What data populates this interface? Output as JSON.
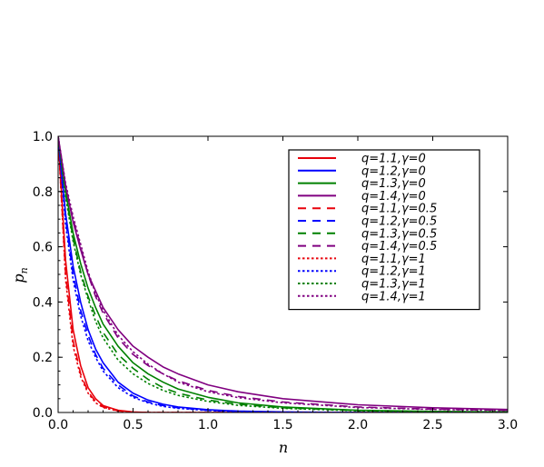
{
  "chart_data": {
    "type": "line",
    "xlabel": "n",
    "ylabel": "p_n",
    "xlim": [
      0,
      3.0
    ],
    "ylim": [
      0,
      1.0
    ],
    "xticks": [
      "0.0",
      "0.5",
      "1.0",
      "1.5",
      "2.0",
      "2.5",
      "3.0"
    ],
    "yticks": [
      "0.0",
      "0.2",
      "0.4",
      "0.6",
      "0.8",
      "1.0"
    ],
    "legend_position": "top-right",
    "grid": false,
    "x": [
      0,
      0.05,
      0.1,
      0.15,
      0.2,
      0.25,
      0.3,
      0.4,
      0.5,
      0.6,
      0.7,
      0.8,
      1.0,
      1.2,
      1.5,
      2.0,
      2.5,
      3.0
    ],
    "series": [
      {
        "name": "q=1.1,γ=0",
        "color": "#e8000b",
        "dash": "solid",
        "values": [
          1.0,
          0.55,
          0.3,
          0.17,
          0.09,
          0.05,
          0.025,
          0.008,
          0.002,
          0.0,
          0.0,
          0.0,
          0.0,
          0.0,
          0.0,
          0.0,
          0.0,
          0.0
        ]
      },
      {
        "name": "q=1.2,γ=0",
        "color": "#0000ff",
        "dash": "solid",
        "values": [
          1.0,
          0.72,
          0.53,
          0.4,
          0.3,
          0.23,
          0.18,
          0.11,
          0.07,
          0.045,
          0.03,
          0.02,
          0.01,
          0.005,
          0.002,
          0.0,
          0.0,
          0.0
        ]
      },
      {
        "name": "q=1.3,γ=0",
        "color": "#008000",
        "dash": "solid",
        "values": [
          1.0,
          0.8,
          0.65,
          0.54,
          0.45,
          0.38,
          0.32,
          0.24,
          0.18,
          0.14,
          0.11,
          0.085,
          0.055,
          0.035,
          0.02,
          0.008,
          0.004,
          0.002
        ]
      },
      {
        "name": "q=1.4,γ=0",
        "color": "#800080",
        "dash": "solid",
        "values": [
          1.0,
          0.82,
          0.69,
          0.59,
          0.5,
          0.44,
          0.38,
          0.3,
          0.24,
          0.2,
          0.165,
          0.14,
          0.1,
          0.075,
          0.05,
          0.028,
          0.017,
          0.011
        ]
      },
      {
        "name": "q=1.1,γ=0.5",
        "color": "#e8000b",
        "dash": "long",
        "values": [
          1.0,
          0.5,
          0.26,
          0.14,
          0.075,
          0.04,
          0.02,
          0.006,
          0.001,
          0.0,
          0.0,
          0.0,
          0.0,
          0.0,
          0.0,
          0.0,
          0.0,
          0.0
        ]
      },
      {
        "name": "q=1.2,γ=0.5",
        "color": "#0000ff",
        "dash": "long",
        "values": [
          1.0,
          0.7,
          0.5,
          0.37,
          0.28,
          0.21,
          0.16,
          0.1,
          0.06,
          0.038,
          0.025,
          0.017,
          0.008,
          0.004,
          0.001,
          0.0,
          0.0,
          0.0
        ]
      },
      {
        "name": "q=1.3,γ=0.5",
        "color": "#008000",
        "dash": "long",
        "values": [
          1.0,
          0.79,
          0.63,
          0.51,
          0.42,
          0.35,
          0.29,
          0.21,
          0.16,
          0.12,
          0.09,
          0.07,
          0.045,
          0.03,
          0.017,
          0.007,
          0.003,
          0.002
        ]
      },
      {
        "name": "q=1.4,γ=0.5",
        "color": "#800080",
        "dash": "long",
        "values": [
          1.0,
          0.82,
          0.7,
          0.6,
          0.5,
          0.42,
          0.36,
          0.27,
          0.21,
          0.17,
          0.14,
          0.115,
          0.08,
          0.058,
          0.038,
          0.02,
          0.012,
          0.008
        ]
      },
      {
        "name": "q=1.1,γ=1",
        "color": "#e8000b",
        "dash": "dot",
        "values": [
          1.0,
          0.48,
          0.24,
          0.13,
          0.07,
          0.035,
          0.018,
          0.005,
          0.001,
          0.0,
          0.0,
          0.0,
          0.0,
          0.0,
          0.0,
          0.0,
          0.0,
          0.0
        ]
      },
      {
        "name": "q=1.2,γ=1",
        "color": "#0000ff",
        "dash": "dot",
        "values": [
          1.0,
          0.68,
          0.48,
          0.35,
          0.26,
          0.2,
          0.15,
          0.09,
          0.055,
          0.035,
          0.022,
          0.015,
          0.007,
          0.003,
          0.001,
          0.0,
          0.0,
          0.0
        ]
      },
      {
        "name": "q=1.3,γ=1",
        "color": "#008000",
        "dash": "dot",
        "values": [
          1.0,
          0.78,
          0.62,
          0.5,
          0.41,
          0.33,
          0.27,
          0.19,
          0.14,
          0.105,
          0.08,
          0.062,
          0.04,
          0.026,
          0.015,
          0.006,
          0.003,
          0.001
        ]
      },
      {
        "name": "q=1.4,γ=1",
        "color": "#800080",
        "dash": "dot",
        "values": [
          1.0,
          0.83,
          0.71,
          0.61,
          0.51,
          0.43,
          0.37,
          0.28,
          0.22,
          0.175,
          0.14,
          0.11,
          0.075,
          0.054,
          0.035,
          0.018,
          0.011,
          0.007
        ]
      }
    ]
  }
}
